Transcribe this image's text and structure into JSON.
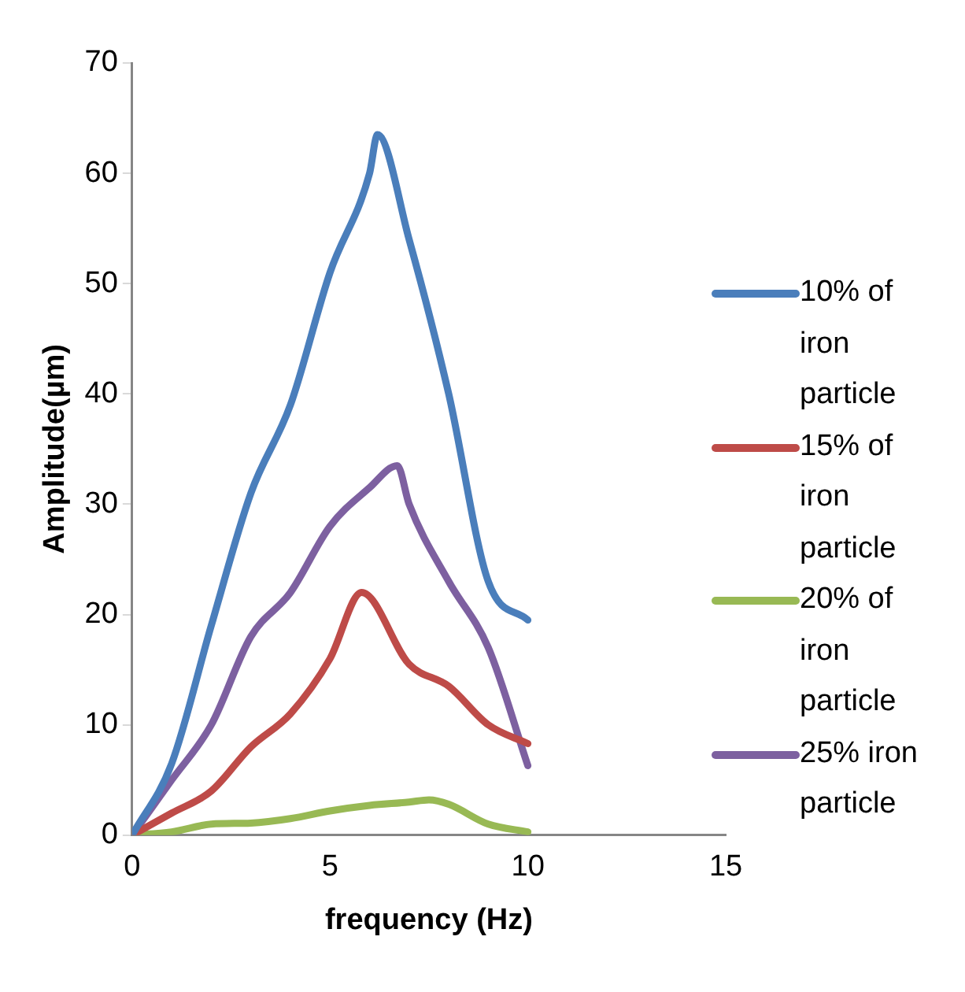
{
  "chart_data": {
    "type": "line",
    "xlabel": "frequency (Hz)",
    "ylabel": "Amplitude(µm)",
    "xlim": [
      0,
      15
    ],
    "xticks": [
      0,
      5,
      10,
      15
    ],
    "ylim": [
      0,
      70
    ],
    "yticks": [
      0,
      10,
      20,
      30,
      40,
      50,
      60,
      70
    ],
    "grid": false,
    "legend": "right",
    "marker": "none",
    "line_style": "solid",
    "series": [
      {
        "name": "10% of iron particle",
        "color": "#4a7ebb",
        "x": [
          0,
          1,
          2,
          3,
          4,
          5,
          6,
          6.2,
          7,
          8,
          9,
          10
        ],
        "values": [
          0,
          6.5,
          19,
          31,
          39,
          51,
          60,
          63.5,
          54,
          40,
          23,
          19.5
        ]
      },
      {
        "name": "15% of iron particle",
        "color": "#be4b48",
        "x": [
          0,
          1,
          2,
          3,
          4,
          5,
          5.8,
          7,
          8,
          9,
          10
        ],
        "values": [
          0,
          2,
          4,
          8,
          11,
          16,
          22,
          15.5,
          13.5,
          10,
          8.3
        ]
      },
      {
        "name": "20% of iron particle",
        "color": "#98b954",
        "x": [
          0,
          1,
          2,
          3,
          4,
          5,
          6,
          7,
          7.5,
          8,
          9,
          10
        ],
        "values": [
          0,
          0.3,
          1,
          1.1,
          1.5,
          2.2,
          2.7,
          3,
          3.2,
          2.8,
          1,
          0.3
        ]
      },
      {
        "name": "25% iron particle",
        "color": "#7d60a0",
        "x": [
          0,
          1,
          2,
          3,
          4,
          5,
          6,
          6.7,
          7,
          8,
          9,
          10
        ],
        "values": [
          0,
          5,
          10,
          18,
          22,
          28,
          31.5,
          33.5,
          30,
          23,
          17,
          6.3
        ]
      }
    ]
  }
}
